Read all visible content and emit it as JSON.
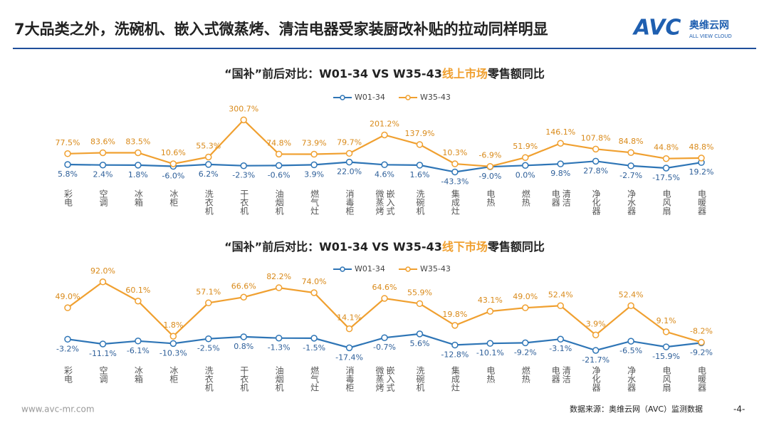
{
  "header": {
    "title": "7大品类之外，洗碗机、嵌入式微蒸烤、清洁电器受家装厨改补贴的拉动同样明显",
    "logo": "AVC",
    "logo_cn": "奥维云网",
    "logo_en": "ALL VIEW CLOUD"
  },
  "chart_data": [
    {
      "type": "line",
      "title": [
        "“国补”前后对比：W01-34 VS W35-43",
        "线上市场",
        "零售额同比"
      ],
      "categories": [
        "彩电",
        "空调",
        "冰箱",
        "冰柜",
        "洗衣机",
        "干衣机",
        "油烟机",
        "燃气灶",
        "消毒柜",
        "嵌入式微蒸烤",
        "洗碗机",
        "集成灶",
        "电热",
        "燃热",
        "清洁电器",
        "净化器",
        "净水器",
        "电风扇",
        "电暖器"
      ],
      "ylim": [
        -60,
        340
      ],
      "series": [
        {
          "name": "W01-34",
          "color": "#2e75b6",
          "values": [
            5.8,
            2.4,
            1.8,
            -6.0,
            6.2,
            -2.3,
            -0.6,
            3.9,
            22.0,
            4.6,
            1.6,
            -43.3,
            -9.0,
            0.0,
            9.8,
            27.8,
            -2.7,
            -17.5,
            19.2
          ],
          "value_labels": [
            "5.8%",
            "2.4%",
            "1.8%",
            "-6.0%",
            "6.2%",
            "-2.3%",
            "-0.6%",
            "3.9%",
            "22.0%",
            "4.6%",
            "1.6%",
            "-43.3%",
            "-9.0%",
            "0.0%",
            "9.8%",
            "27.8%",
            "-2.7%",
            "-17.5%",
            "19.2%"
          ]
        },
        {
          "name": "W35-43",
          "color": "#f0a030",
          "values": [
            77.5,
            83.6,
            83.5,
            10.6,
            55.3,
            300.7,
            74.8,
            73.9,
            79.7,
            201.2,
            137.9,
            10.3,
            -6.9,
            51.9,
            146.1,
            107.8,
            84.8,
            44.8,
            48.8
          ],
          "value_labels": [
            "77.5%",
            "83.6%",
            "83.5%",
            "10.6%",
            "55.3%",
            "300.7%",
            "74.8%",
            "73.9%",
            "79.7%",
            "201.2%",
            "137.9%",
            "10.3%",
            "-6.9%",
            "51.9%",
            "146.1%",
            "107.8%",
            "84.8%",
            "44.8%",
            "48.8%"
          ]
        }
      ]
    },
    {
      "type": "line",
      "title": [
        "“国补”前后对比：W01-34 VS W35-43",
        "线下市场",
        "零售额同比"
      ],
      "categories": [
        "彩电",
        "空调",
        "冰箱",
        "冰柜",
        "洗衣机",
        "干衣机",
        "油烟机",
        "燃气灶",
        "消毒柜",
        "嵌入式微蒸烤",
        "洗碗机",
        "集成灶",
        "电热",
        "燃热",
        "清洁电器",
        "净化器",
        "净水器",
        "电风扇",
        "电暖器"
      ],
      "ylim": [
        -30,
        100
      ],
      "series": [
        {
          "name": "W01-34",
          "color": "#2e75b6",
          "values": [
            -3.2,
            -11.1,
            -6.1,
            -10.3,
            -2.5,
            0.8,
            -1.3,
            -1.5,
            -17.4,
            -0.7,
            5.6,
            -12.8,
            -10.1,
            -9.2,
            -3.1,
            -21.7,
            -6.5,
            -15.9,
            -9.2
          ],
          "value_labels": [
            "-3.2%",
            "-11.1%",
            "-6.1%",
            "-10.3%",
            "-2.5%",
            "0.8%",
            "-1.3%",
            "-1.5%",
            "-17.4%",
            "-0.7%",
            "5.6%",
            "-12.8%",
            "-10.1%",
            "-9.2%",
            "-3.1%",
            "-21.7%",
            "-6.5%",
            "-15.9%",
            "-9.2%"
          ]
        },
        {
          "name": "W35-43",
          "color": "#f0a030",
          "values": [
            49.0,
            92.0,
            60.1,
            1.8,
            57.1,
            66.6,
            82.2,
            74.0,
            14.1,
            64.6,
            55.9,
            19.8,
            43.1,
            49.0,
            52.4,
            3.9,
            52.4,
            9.1,
            -8.2
          ],
          "value_labels": [
            "49.0%",
            "92.0%",
            "60.1%",
            "1.8%",
            "57.1%",
            "66.6%",
            "82.2%",
            "74.0%",
            "14.1%",
            "64.6%",
            "55.9%",
            "19.8%",
            "43.1%",
            "49.0%",
            "52.4%",
            "3.9%",
            "52.4%",
            "9.1%",
            "-8.2%"
          ]
        }
      ]
    }
  ],
  "footer": {
    "website": "www.avc-mr.com",
    "source": "数据来源：奥维云网（AVC）监测数据",
    "page": "-4-"
  }
}
